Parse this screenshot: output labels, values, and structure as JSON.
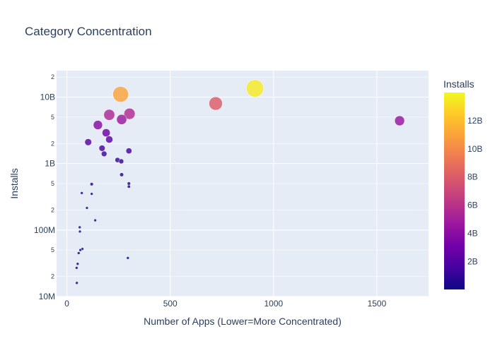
{
  "chart_data": {
    "type": "scatter",
    "title": "Category Concentration",
    "xlabel": "Number of Apps (Lower=More Concentrated)",
    "ylabel": "Installs",
    "xlim": [
      -50,
      1750
    ],
    "ylim": [
      10000000,
      25000000000
    ],
    "y_scale": "log",
    "grid": true,
    "x_ticks": [
      {
        "value": 0,
        "label": "0"
      },
      {
        "value": 500,
        "label": "500"
      },
      {
        "value": 1000,
        "label": "1000"
      },
      {
        "value": 1500,
        "label": "1500"
      }
    ],
    "y_ticks": [
      {
        "value": 10000000,
        "label": "10M"
      },
      {
        "value": 100000000,
        "label": "100M"
      },
      {
        "value": 1000000000,
        "label": "1B"
      },
      {
        "value": 10000000000,
        "label": "10B"
      }
    ],
    "y_minor_ticks": [
      {
        "value": 20000000,
        "label": "2"
      },
      {
        "value": 50000000,
        "label": "5"
      },
      {
        "value": 200000000,
        "label": "2"
      },
      {
        "value": 500000000,
        "label": "5"
      },
      {
        "value": 2000000000,
        "label": "2"
      },
      {
        "value": 5000000000,
        "label": "5"
      },
      {
        "value": 20000000000,
        "label": "2"
      }
    ],
    "colorbar": {
      "title": "Installs",
      "min": 15000000,
      "max": 14000000000,
      "ticks": [
        {
          "value": 2000000000,
          "label": "2B"
        },
        {
          "value": 4000000000,
          "label": "4B"
        },
        {
          "value": 6000000000,
          "label": "6B"
        },
        {
          "value": 8000000000,
          "label": "8B"
        },
        {
          "value": 10000000000,
          "label": "10B"
        },
        {
          "value": 12000000000,
          "label": "12B"
        }
      ]
    },
    "points": [
      {
        "x": 1610,
        "y": 4400000000
      },
      {
        "x": 910,
        "y": 13500000000
      },
      {
        "x": 720,
        "y": 8000000000
      },
      {
        "x": 260,
        "y": 11000000000
      },
      {
        "x": 303,
        "y": 5600000000
      },
      {
        "x": 265,
        "y": 4600000000
      },
      {
        "x": 205,
        "y": 5400000000
      },
      {
        "x": 150,
        "y": 3800000000
      },
      {
        "x": 190,
        "y": 2900000000
      },
      {
        "x": 205,
        "y": 2300000000
      },
      {
        "x": 103,
        "y": 2100000000
      },
      {
        "x": 300,
        "y": 1550000000
      },
      {
        "x": 170,
        "y": 1700000000
      },
      {
        "x": 180,
        "y": 1400000000
      },
      {
        "x": 245,
        "y": 1130000000
      },
      {
        "x": 263,
        "y": 1080000000
      },
      {
        "x": 265,
        "y": 680000000
      },
      {
        "x": 300,
        "y": 500000000
      },
      {
        "x": 300,
        "y": 450000000
      },
      {
        "x": 120,
        "y": 490000000
      },
      {
        "x": 72,
        "y": 360000000
      },
      {
        "x": 120,
        "y": 350000000
      },
      {
        "x": 97,
        "y": 215000000
      },
      {
        "x": 137,
        "y": 140000000
      },
      {
        "x": 62,
        "y": 110000000
      },
      {
        "x": 63,
        "y": 95000000
      },
      {
        "x": 75,
        "y": 52000000
      },
      {
        "x": 65,
        "y": 50000000
      },
      {
        "x": 57,
        "y": 45000000
      },
      {
        "x": 295,
        "y": 38000000
      },
      {
        "x": 52,
        "y": 31000000
      },
      {
        "x": 47,
        "y": 27000000
      },
      {
        "x": 48,
        "y": 16000000
      }
    ]
  }
}
